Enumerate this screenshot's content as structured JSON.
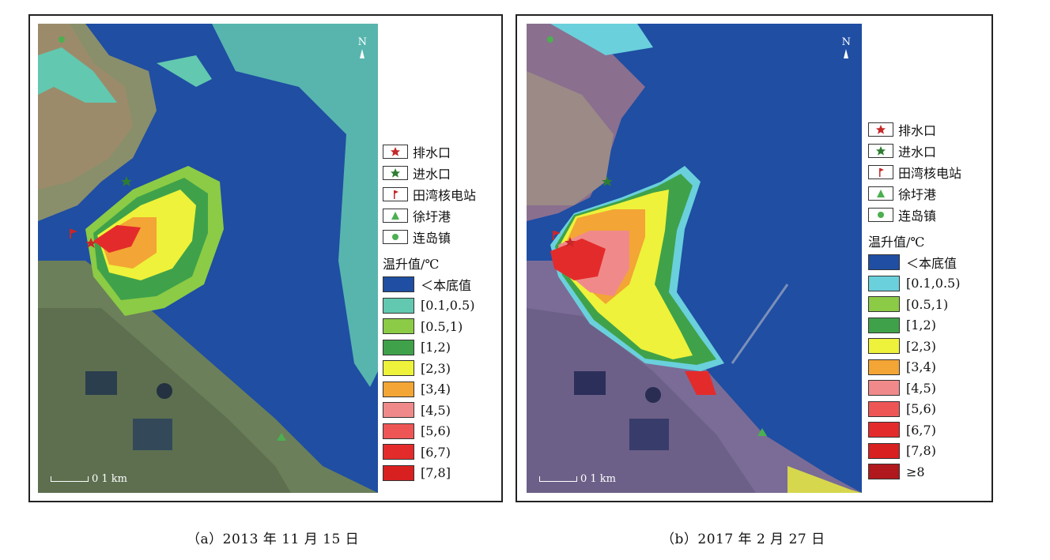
{
  "panels": {
    "a": {
      "caption": "（a）2013 年 11 月 15 日",
      "north": "N",
      "scale": "0 1 km",
      "legend": {
        "points": [
          {
            "label": "排水口",
            "icon": "red-star-icon"
          },
          {
            "label": "进水口",
            "icon": "green-star-icon"
          },
          {
            "label": "田湾核电站",
            "icon": "flag-icon"
          },
          {
            "label": "徐圩港",
            "icon": "green-triangle-icon"
          },
          {
            "label": "连岛镇",
            "icon": "green-dot-icon"
          }
        ],
        "title": "温升值/℃",
        "classes": [
          {
            "label": "＜本底值",
            "color": "#1f4ea3"
          },
          {
            "label": "[0.1,0.5)",
            "color": "#62c8b0"
          },
          {
            "label": "[0.5,1)",
            "color": "#8ccb45"
          },
          {
            "label": "[1,2)",
            "color": "#3fa24a"
          },
          {
            "label": "[2,3)",
            "color": "#eef23a"
          },
          {
            "label": "[3,4)",
            "color": "#f3a535"
          },
          {
            "label": "[4,5)",
            "color": "#f08a8a"
          },
          {
            "label": "[5,6)",
            "color": "#ee5656"
          },
          {
            "label": "[6,7)",
            "color": "#e42b2b"
          },
          {
            "label": "[7,8]",
            "color": "#d92020"
          }
        ]
      }
    },
    "b": {
      "caption": "（b）2017 年 2 月 27 日",
      "north": "N",
      "scale": "0 1 km",
      "legend": {
        "points": [
          {
            "label": "排水口",
            "icon": "red-star-icon"
          },
          {
            "label": "进水口",
            "icon": "green-star-icon"
          },
          {
            "label": "田湾核电站",
            "icon": "flag-icon"
          },
          {
            "label": "徐圩港",
            "icon": "green-triangle-icon"
          },
          {
            "label": "连岛镇",
            "icon": "green-dot-icon"
          }
        ],
        "title": "温升值/℃",
        "classes": [
          {
            "label": "＜本底值",
            "color": "#1f4ea3"
          },
          {
            "label": "[0.1,0.5)",
            "color": "#6ad0dc"
          },
          {
            "label": "[0.5,1)",
            "color": "#8ccb45"
          },
          {
            "label": "[1,2)",
            "color": "#3fa24a"
          },
          {
            "label": "[2,3)",
            "color": "#eef23a"
          },
          {
            "label": "[3,4)",
            "color": "#f3a535"
          },
          {
            "label": "[4,5)",
            "color": "#f08a8a"
          },
          {
            "label": "[5,6)",
            "color": "#ee5656"
          },
          {
            "label": "[6,7)",
            "color": "#e42b2b"
          },
          {
            "label": "[7,8)",
            "color": "#d92020"
          },
          {
            "label": "≥8",
            "color": "#b0181e"
          }
        ]
      }
    }
  }
}
